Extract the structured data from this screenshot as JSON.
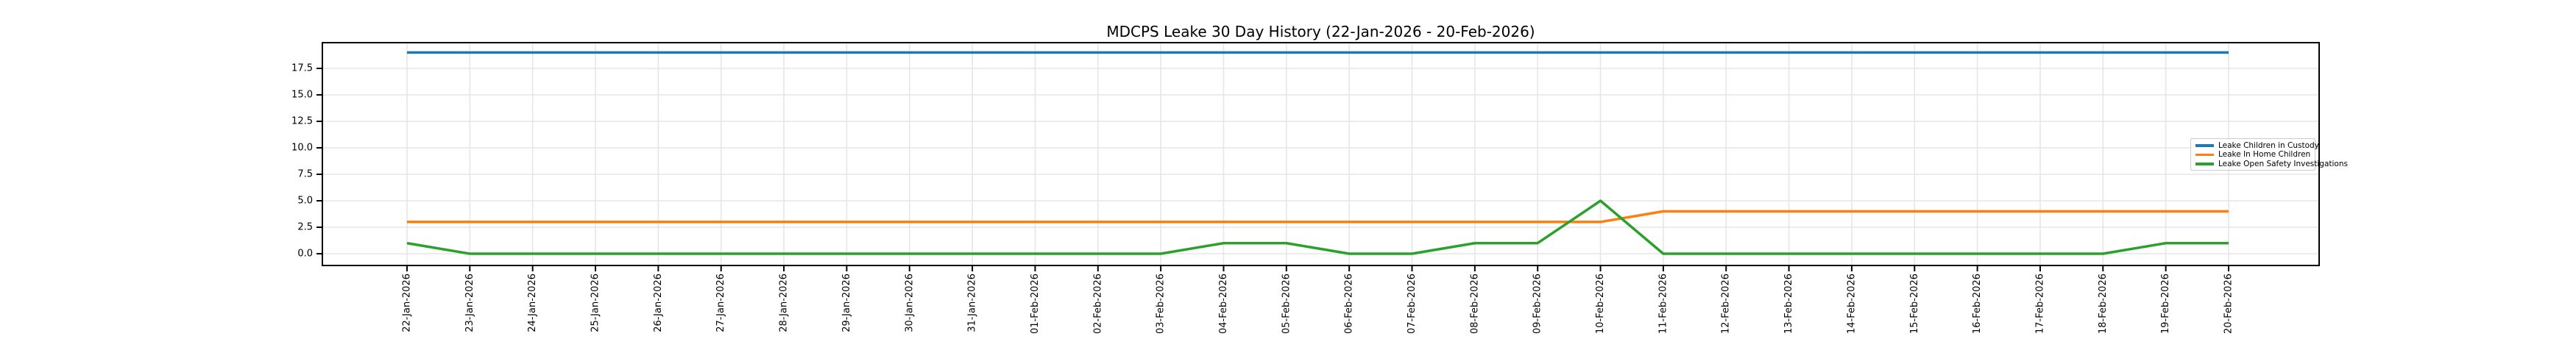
{
  "chart_data": {
    "type": "line",
    "title": "MDCPS Leake 30 Day History (22-Jan-2026 - 20-Feb-2026)",
    "xlabel": "",
    "ylabel": "",
    "categories": [
      "22-Jan-2026",
      "23-Jan-2026",
      "24-Jan-2026",
      "25-Jan-2026",
      "26-Jan-2026",
      "27-Jan-2026",
      "28-Jan-2026",
      "29-Jan-2026",
      "30-Jan-2026",
      "31-Jan-2026",
      "01-Feb-2026",
      "02-Feb-2026",
      "03-Feb-2026",
      "04-Feb-2026",
      "05-Feb-2026",
      "06-Feb-2026",
      "07-Feb-2026",
      "08-Feb-2026",
      "09-Feb-2026",
      "10-Feb-2026",
      "11-Feb-2026",
      "12-Feb-2026",
      "13-Feb-2026",
      "14-Feb-2026",
      "15-Feb-2026",
      "16-Feb-2026",
      "17-Feb-2026",
      "18-Feb-2026",
      "19-Feb-2026",
      "20-Feb-2026"
    ],
    "series": [
      {
        "name": "Leake Children in Custody",
        "color": "#1f77b4",
        "values": [
          19,
          19,
          19,
          19,
          19,
          19,
          19,
          19,
          19,
          19,
          19,
          19,
          19,
          19,
          19,
          19,
          19,
          19,
          19,
          19,
          19,
          19,
          19,
          19,
          19,
          19,
          19,
          19,
          19,
          19
        ]
      },
      {
        "name": "Leake In Home Children",
        "color": "#ff7f0e",
        "values": [
          3,
          3,
          3,
          3,
          3,
          3,
          3,
          3,
          3,
          3,
          3,
          3,
          3,
          3,
          3,
          3,
          3,
          3,
          3,
          3,
          4,
          4,
          4,
          4,
          4,
          4,
          4,
          4,
          4,
          4
        ]
      },
      {
        "name": "Leake Open Safety Investigations",
        "color": "#2ca02c",
        "values": [
          1,
          0,
          0,
          0,
          0,
          0,
          0,
          0,
          0,
          0,
          0,
          0,
          0,
          1,
          1,
          0,
          0,
          1,
          1,
          5,
          0,
          0,
          0,
          0,
          0,
          0,
          0,
          0,
          1,
          1
        ]
      }
    ],
    "ytick_labels": [
      "0.0",
      "2.5",
      "5.0",
      "7.5",
      "10.0",
      "12.5",
      "15.0",
      "17.5"
    ],
    "yticks": [
      0.0,
      2.5,
      5.0,
      7.5,
      10.0,
      12.5,
      15.0,
      17.5
    ],
    "ylim": [
      -1.11,
      19.93
    ],
    "grid": true,
    "legend_position": "center right",
    "grid_color": "#e6e6e6",
    "spine_color": "#000000"
  }
}
